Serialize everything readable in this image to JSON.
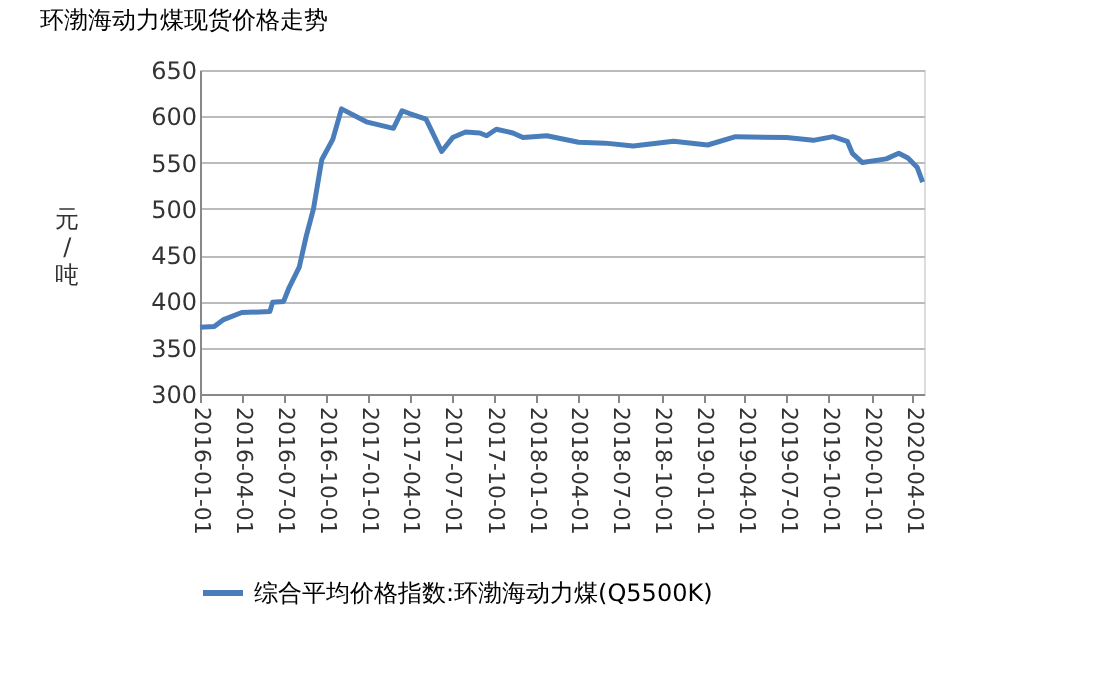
{
  "chart_data": {
    "type": "line",
    "title": "环渤海动力煤现货价格走势",
    "ylabel": "元/吨",
    "series": [
      {
        "name": "综合平均价格指数:环渤海动力煤(Q5500K)",
        "color": "#4a7ebb",
        "x": [
          "2016-01-01",
          "2016-02-01",
          "2016-02-20",
          "2016-04-01",
          "2016-06-01",
          "2016-06-07",
          "2016-07-01",
          "2016-07-13",
          "2016-08-04",
          "2016-08-19",
          "2016-09-04",
          "2016-09-22",
          "2016-10-16",
          "2016-11-04",
          "2016-12-28",
          "2017-02-25",
          "2017-03-16",
          "2017-04-01",
          "2017-05-07",
          "2017-06-10",
          "2017-07-04",
          "2017-08-01",
          "2017-09-01",
          "2017-09-16",
          "2017-10-07",
          "2017-11-12",
          "2017-12-04",
          "2018-01-25",
          "2018-04-04",
          "2018-06-01",
          "2018-08-01",
          "2018-10-28",
          "2019-01-10",
          "2019-03-12",
          "2019-07-01",
          "2019-08-28",
          "2019-10-10",
          "2019-11-10",
          "2019-11-21",
          "2019-12-13",
          "2020-02-03",
          "2020-03-01",
          "2020-03-21",
          "2020-04-10",
          "2020-04-22"
        ],
        "values": [
          372,
          373,
          380,
          388,
          389,
          399,
          400,
          415,
          437,
          470,
          500,
          553,
          575,
          608,
          594,
          587,
          606,
          603,
          597,
          562,
          577,
          583,
          582,
          579,
          586,
          582,
          577,
          579,
          572,
          571,
          568,
          573,
          569,
          578,
          577,
          574,
          578,
          573,
          560,
          550,
          554,
          560,
          555,
          545,
          529
        ]
      }
    ],
    "xlim": [
      "2016-01-01",
      "2020-04-25"
    ],
    "xticks": [
      "2016-01-01",
      "2016-04-01",
      "2016-07-01",
      "2016-10-01",
      "2017-01-01",
      "2017-04-01",
      "2017-07-01",
      "2017-10-01",
      "2018-01-01",
      "2018-04-01",
      "2018-07-01",
      "2018-10-01",
      "2019-01-01",
      "2019-04-01",
      "2019-07-01",
      "2019-10-01",
      "2020-01-01",
      "2020-04-01"
    ],
    "ylim": [
      300,
      650
    ],
    "yticks": [
      300,
      350,
      400,
      450,
      500,
      550,
      600,
      650
    ],
    "grid": "y",
    "legend": "bottom",
    "line_style": "solid",
    "marker": "none"
  }
}
